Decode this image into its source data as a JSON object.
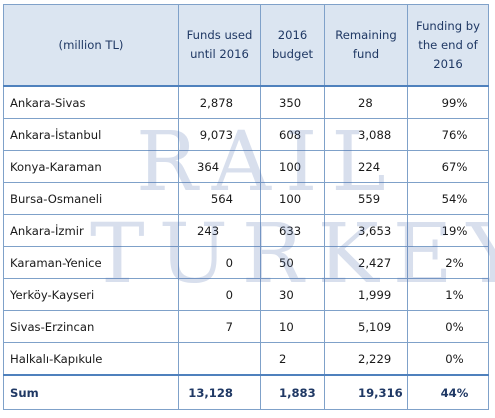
{
  "table": {
    "headers": [
      "(million TL)",
      "Funds used until 2016",
      "2016 budget",
      "Remaining fund",
      "Funding by the end of 2016"
    ],
    "rows": [
      {
        "name": "Ankara-Sivas",
        "used": "2,878",
        "budget": "350",
        "remaining": "28",
        "funding": "99%"
      },
      {
        "name": "Ankara-İstanbul",
        "used": "9,073",
        "budget": "608",
        "remaining": "3,088",
        "funding": "76%"
      },
      {
        "name": "Konya-Karaman",
        "used": "364",
        "budget": "100",
        "remaining": "224",
        "funding": "67%"
      },
      {
        "name": "Bursa-Osmaneli",
        "used": "564",
        "budget": "100",
        "remaining": "559",
        "funding": "54%"
      },
      {
        "name": "Ankara-İzmir",
        "used": "243",
        "budget": "633",
        "remaining": "3,653",
        "funding": "19%"
      },
      {
        "name": "Karaman-Yenice",
        "used": "0",
        "budget": "50",
        "remaining": "2,427",
        "funding": "2%"
      },
      {
        "name": "Yerköy-Kayseri",
        "used": "0",
        "budget": "30",
        "remaining": "1,999",
        "funding": "1%"
      },
      {
        "name": "Sivas-Erzincan",
        "used": "7",
        "budget": "10",
        "remaining": "5,109",
        "funding": "0%"
      },
      {
        "name": "Halkalı-Kapıkule",
        "used": "",
        "budget": "2",
        "remaining": "2,229",
        "funding": "0%"
      }
    ],
    "sum": {
      "name": "Sum",
      "used": "13,128",
      "budget": "1,883",
      "remaining": "19,316",
      "funding": "44%"
    }
  },
  "watermark": {
    "line1": "RAIL",
    "line2": "TURKEY"
  },
  "colors": {
    "header_bg": "#dbe5f1",
    "header_text": "#1f3864",
    "border": "#7fa1c9",
    "watermark": "#4f6eaf"
  }
}
